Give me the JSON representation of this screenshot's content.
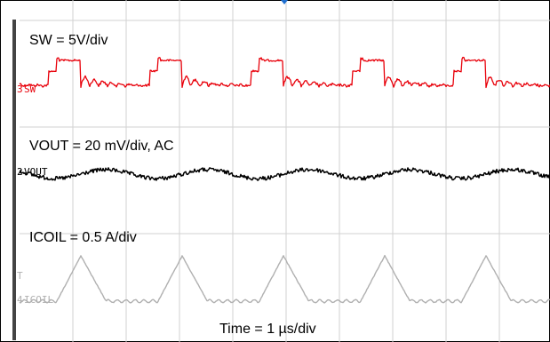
{
  "chart_data": {
    "type": "line",
    "title": "",
    "channels": [
      {
        "label": "SW = 5V/div",
        "marker": "SW",
        "marker_num": "3",
        "color": "#e8000a"
      },
      {
        "label": "VOUT = 20 mV/div, AC",
        "marker": "VOUT",
        "marker_num": "2",
        "color": "#000000"
      },
      {
        "label": "ICOIL = 0.5 A/div",
        "marker": "ICOIL",
        "marker_num": "4",
        "color": "#b0b0b0"
      }
    ],
    "trigger_marker": "T",
    "timebase_label": "Time = 1 µs/div",
    "timebase_us_per_div": 1,
    "divisions": {
      "x": 10,
      "y": 8
    },
    "switching_period_us": 1.9,
    "sw_pulse_width_us": 0.45,
    "icoil_peak_a": 0.85,
    "icoil_valley_a": 0.0,
    "vout_ripple_mv": 12,
    "grid": true
  }
}
